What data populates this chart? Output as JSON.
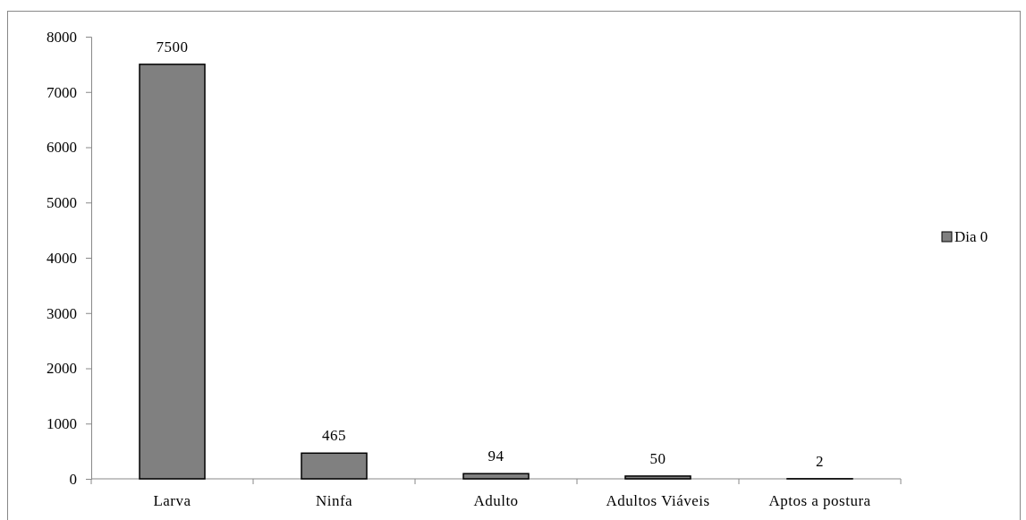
{
  "chart_data": {
    "type": "bar",
    "categories": [
      "Larva",
      "Ninfa",
      "Adulto",
      "Adultos Viáveis",
      "Aptos a postura"
    ],
    "series": [
      {
        "name": "Dia 0",
        "color": "#808080",
        "values": [
          7500,
          465,
          94,
          50,
          2
        ]
      }
    ],
    "ylim": [
      0,
      8000
    ],
    "yticks": [
      0,
      1000,
      2000,
      3000,
      4000,
      5000,
      6000,
      7000,
      8000
    ],
    "data_labels": true,
    "legend": "right",
    "grid": false
  }
}
